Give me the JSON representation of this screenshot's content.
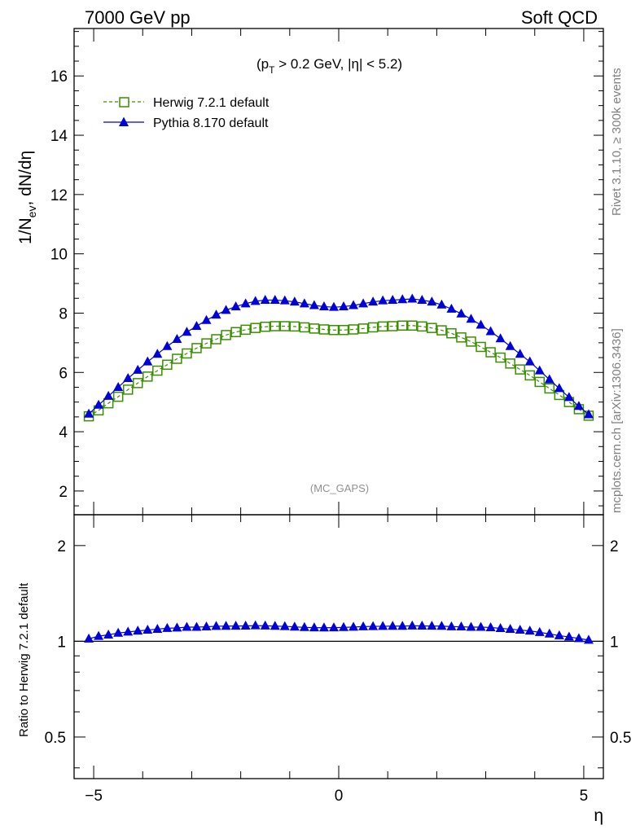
{
  "header": {
    "left": "7000 GeV pp",
    "right": "Soft QCD"
  },
  "side_labels": {
    "rivet": "Rivet 3.1.10, ≥ 300k events",
    "mcplots": "mcplots.cern.ch [arXiv:1306.3436]"
  },
  "annotations": {
    "cut_prefix": "(p",
    "cut_sub": "T",
    "cut_suffix": " > 0.2 GeV, |η| < 5.2)",
    "watermark": "(MC_GAPS)"
  },
  "colors": {
    "herwig": "#3a8f00",
    "pythia": "#0000d8",
    "axis": "#000000",
    "side_text": "#808080"
  },
  "chart_data": [
    {
      "type": "line",
      "ylabel": "1/N_ev, dN/dη",
      "ylabel_parts": {
        "a": "1/N",
        "sub": "ev",
        "b": ", dN/dη"
      },
      "xlabel": "",
      "xlim": [
        -5.4,
        5.4
      ],
      "ylim": [
        1.2,
        17.6
      ],
      "yticks": [
        2,
        4,
        6,
        8,
        10,
        12,
        14,
        16
      ],
      "legend_position": "top-left",
      "legend": [
        {
          "label": "Herwig 7.2.1 default",
          "marker": "open-square",
          "style": "dashed"
        },
        {
          "label": "Pythia 8.170 default",
          "marker": "filled-triangle",
          "style": "solid"
        }
      ],
      "x": [
        -5.1,
        -4.9,
        -4.7,
        -4.5,
        -4.3,
        -4.1,
        -3.9,
        -3.7,
        -3.5,
        -3.3,
        -3.1,
        -2.9,
        -2.7,
        -2.5,
        -2.3,
        -2.1,
        -1.9,
        -1.7,
        -1.5,
        -1.3,
        -1.1,
        -0.9,
        -0.7,
        -0.5,
        -0.3,
        -0.1,
        0.1,
        0.3,
        0.5,
        0.7,
        0.9,
        1.1,
        1.3,
        1.5,
        1.7,
        1.9,
        2.1,
        2.3,
        2.5,
        2.7,
        2.9,
        3.1,
        3.3,
        3.5,
        3.7,
        3.9,
        4.1,
        4.3,
        4.5,
        4.7,
        4.9,
        5.1
      ],
      "series": [
        {
          "name": "Herwig 7.2.1 default",
          "values": [
            4.52,
            4.72,
            4.96,
            5.18,
            5.42,
            5.64,
            5.86,
            6.06,
            6.26,
            6.46,
            6.64,
            6.82,
            6.98,
            7.12,
            7.26,
            7.36,
            7.44,
            7.5,
            7.54,
            7.56,
            7.56,
            7.55,
            7.52,
            7.48,
            7.45,
            7.43,
            7.43,
            7.45,
            7.48,
            7.52,
            7.55,
            7.56,
            7.58,
            7.58,
            7.55,
            7.5,
            7.42,
            7.32,
            7.18,
            7.04,
            6.86,
            6.68,
            6.5,
            6.3,
            6.1,
            5.9,
            5.68,
            5.46,
            5.24,
            5.0,
            4.76,
            4.54
          ]
        },
        {
          "name": "Pythia 8.170 default",
          "values": [
            4.6,
            4.9,
            5.2,
            5.5,
            5.8,
            6.08,
            6.36,
            6.62,
            6.88,
            7.12,
            7.36,
            7.56,
            7.76,
            7.94,
            8.1,
            8.22,
            8.32,
            8.4,
            8.44,
            8.44,
            8.42,
            8.38,
            8.32,
            8.26,
            8.22,
            8.2,
            8.22,
            8.26,
            8.32,
            8.38,
            8.42,
            8.44,
            8.46,
            8.48,
            8.44,
            8.38,
            8.28,
            8.14,
            7.98,
            7.8,
            7.6,
            7.38,
            7.14,
            6.88,
            6.62,
            6.36,
            6.06,
            5.76,
            5.46,
            5.16,
            4.86,
            4.58
          ]
        }
      ]
    },
    {
      "type": "line",
      "ylabel": "Ratio to Herwig 7.2.1 default",
      "xlabel": "η",
      "xlim": [
        -5.4,
        5.4
      ],
      "xticks": [
        -5,
        0,
        5
      ],
      "xtick_labels": [
        "−5",
        "0",
        "5"
      ],
      "yscale": "log",
      "ylim": [
        0.37,
        2.5
      ],
      "yticks": [
        0.5,
        1,
        2
      ],
      "ytick_labels": [
        "0.5",
        "1",
        "2"
      ],
      "reference_line": 1,
      "series": [
        {
          "name": "Pythia 8.170 default",
          "values": [
            1.018,
            1.038,
            1.048,
            1.062,
            1.07,
            1.078,
            1.085,
            1.092,
            1.099,
            1.102,
            1.108,
            1.108,
            1.111,
            1.115,
            1.116,
            1.117,
            1.118,
            1.12,
            1.119,
            1.116,
            1.114,
            1.11,
            1.106,
            1.104,
            1.103,
            1.104,
            1.106,
            1.109,
            1.112,
            1.114,
            1.115,
            1.116,
            1.116,
            1.119,
            1.118,
            1.117,
            1.116,
            1.112,
            1.111,
            1.108,
            1.108,
            1.105,
            1.098,
            1.092,
            1.085,
            1.078,
            1.067,
            1.055,
            1.042,
            1.032,
            1.021,
            1.009
          ]
        }
      ]
    }
  ]
}
